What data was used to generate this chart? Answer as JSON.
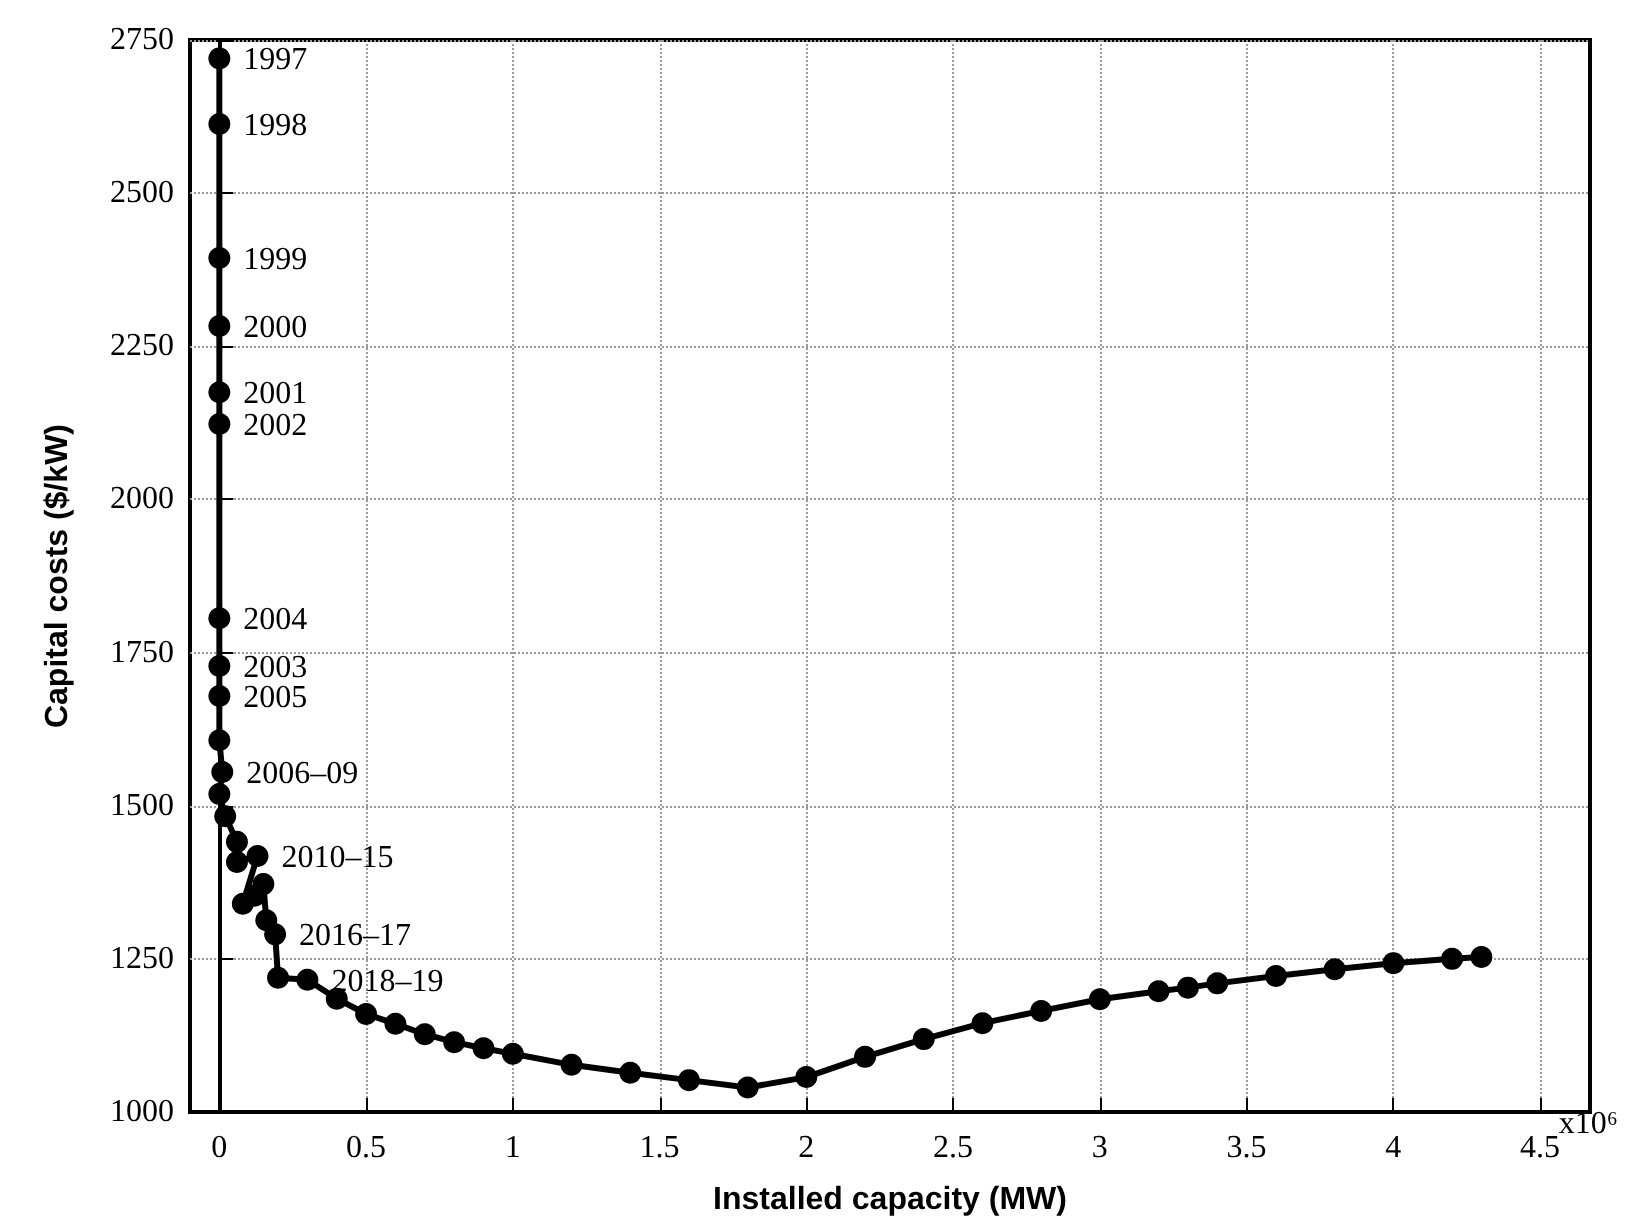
{
  "chart_data": {
    "type": "line",
    "xlabel": "Installed capacity (MW)",
    "ylabel": "Capital costs ($/kW)",
    "x": [
      0,
      0,
      0,
      0,
      0,
      0,
      0,
      0,
      0,
      0,
      0.01,
      0,
      0.02,
      0.06,
      0.06,
      0.13,
      0.08,
      0.12,
      0.15,
      0.16,
      0.19,
      0.2,
      0.3,
      0.4,
      0.5,
      0.6,
      0.7,
      0.8,
      0.9,
      1.0,
      1.2,
      1.4,
      1.6,
      1.8,
      2.0,
      2.2,
      2.4,
      2.6,
      2.8,
      3.0,
      3.2,
      3.3,
      3.4,
      3.6,
      3.8,
      4.0,
      4.2,
      4.3
    ],
    "series": [
      {
        "color": "#000000",
        "values": [
          2720,
          2613,
          2394,
          2283,
          2175,
          2123,
          1806,
          1728,
          1679,
          1607,
          1555,
          1519,
          1483,
          1441,
          1408,
          1418,
          1340,
          1353,
          1372,
          1313,
          1290,
          1219,
          1216,
          1185,
          1160,
          1144,
          1127,
          1114,
          1104,
          1095,
          1077,
          1064,
          1052,
          1040,
          1057,
          1090,
          1119,
          1145,
          1165,
          1184,
          1197,
          1203,
          1210,
          1222,
          1233,
          1243,
          1250,
          1253
        ]
      }
    ],
    "xlim": [
      -0.1,
      4.67
    ],
    "xticks": [
      0,
      0.5,
      1,
      1.5,
      2,
      2.5,
      3,
      3.5,
      4,
      4.5
    ],
    "ylim": [
      1000,
      2750
    ],
    "yticks": [
      1000,
      1250,
      1500,
      1750,
      2000,
      2250,
      2500,
      2750
    ],
    "annotations": [
      {
        "text": "1997",
        "x": 0,
        "y": 2720
      },
      {
        "text": "1998",
        "x": 0,
        "y": 2613
      },
      {
        "text": "1999",
        "x": 0,
        "y": 2394
      },
      {
        "text": "2000",
        "x": 0,
        "y": 2283
      },
      {
        "text": "2001",
        "x": 0,
        "y": 2175
      },
      {
        "text": "2002",
        "x": 0,
        "y": 2123
      },
      {
        "text": "2004",
        "x": 0,
        "y": 1806
      },
      {
        "text": "2003",
        "x": 0,
        "y": 1728
      },
      {
        "text": "2005",
        "x": 0,
        "y": 1679
      },
      {
        "text": "2006–09",
        "x": 0.01,
        "y": 1555
      },
      {
        "text": "2010–15",
        "x": 0.13,
        "y": 1418
      },
      {
        "text": "2016–17",
        "x": 0.19,
        "y": 1290
      },
      {
        "text": "2018–19",
        "x": 0.3,
        "y": 1216
      },
      "x10⁶"
    ],
    "grid": true,
    "marker": "circle",
    "line_style": "solid"
  }
}
